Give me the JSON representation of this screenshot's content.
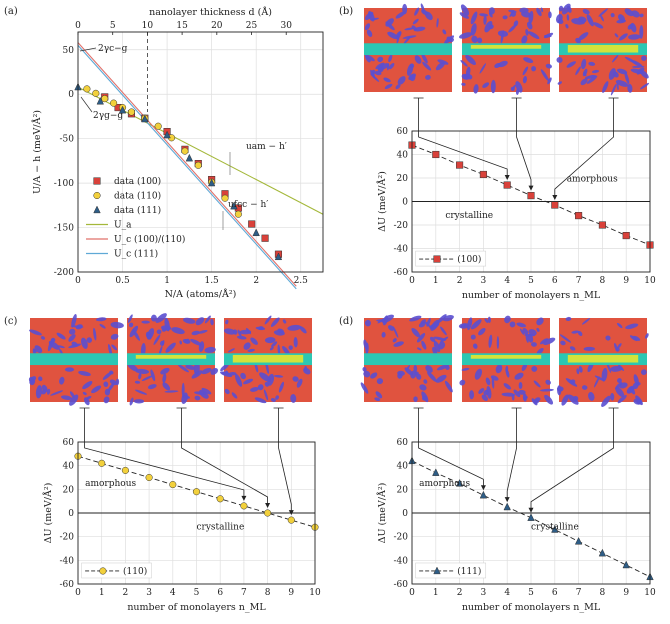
{
  "chart_data": [
    {
      "panel": "(a)",
      "type": "scatter",
      "title": "",
      "xlabel": "N/A  (atoms/Å²)",
      "ylabel": "U/A − h  (meV/Å²)",
      "top_xlabel": "nanolayer thickness d (Å)",
      "xlim": [
        0,
        2.75
      ],
      "ylim": [
        -200,
        70
      ],
      "x_ticks": [
        0,
        0.5,
        1,
        1.5,
        2,
        2.5
      ],
      "x_tick_labels": [
        "0",
        "0.5",
        "1",
        "1.5",
        "2",
        "2.5"
      ],
      "y_ticks": [
        50,
        0,
        -50,
        -100,
        -150,
        -200
      ],
      "top_ticks": [
        0,
        5,
        10,
        15,
        20,
        25,
        30
      ],
      "top_lim": [
        0,
        35.3
      ],
      "grid": true,
      "legend_position": "bottom-left",
      "dashed_vline_top": 10,
      "series": [
        {
          "name": "data (100)",
          "marker": "square",
          "color": "#d9413a",
          "x": [
            0.3,
            0.45,
            0.6,
            0.75,
            1.0,
            1.2,
            1.35,
            1.5,
            1.65,
            1.8,
            1.95,
            2.1,
            2.25
          ],
          "y": [
            -3,
            -15,
            -22,
            -27,
            -42,
            -62,
            -78,
            -96,
            -112,
            -128,
            -146,
            -162,
            -180
          ]
        },
        {
          "name": "data (110)",
          "marker": "circle",
          "color": "#f2d03c",
          "x": [
            0.1,
            0.2,
            0.3,
            0.4,
            0.5,
            0.6,
            0.75,
            0.9,
            1.05,
            1.2,
            1.35,
            1.5,
            1.65,
            1.8
          ],
          "y": [
            6,
            1,
            -5,
            -10,
            -15,
            -20,
            -27,
            -36,
            -49,
            -64,
            -80,
            -99,
            -117,
            -135
          ]
        },
        {
          "name": "data (111)",
          "marker": "triangle",
          "color": "#2e5d86",
          "x": [
            0.0,
            0.25,
            0.5,
            0.75,
            1.0,
            1.25,
            1.5,
            1.75,
            2.0,
            2.25
          ],
          "y": [
            8,
            -8,
            -18,
            -28,
            -46,
            -72,
            -100,
            -126,
            -156,
            -183
          ]
        }
      ],
      "lines": [
        {
          "name": "U_a",
          "color": "#a4b83a",
          "x": [
            0,
            2.75
          ],
          "y": [
            8,
            -135
          ]
        },
        {
          "name": "U_c (100)/(110)",
          "color": "#e0706a",
          "x": [
            0,
            2.45
          ],
          "y": [
            58,
            -216
          ]
        },
        {
          "name": "U_c (111)",
          "color": "#5fa9d6",
          "x": [
            0,
            2.45
          ],
          "y": [
            55,
            -219
          ]
        }
      ],
      "annotations": [
        "2γc−g",
        "2γg−g",
        "uam − h′",
        "ufcc − h′"
      ]
    },
    {
      "panel": "(b)",
      "type": "line",
      "xlabel": "number of monolayers n_ML",
      "ylabel": "ΔU  (meV/Å²)",
      "xlim": [
        0,
        10
      ],
      "ylim": [
        -60,
        60
      ],
      "x": [
        0,
        1,
        2,
        3,
        4,
        5,
        6,
        7,
        8,
        9,
        10
      ],
      "series": [
        {
          "name": "(100)",
          "marker": "square",
          "color": "#d9413a",
          "values": [
            48,
            40,
            31,
            23,
            14,
            5,
            -3,
            -12,
            -20,
            -29,
            -37
          ]
        }
      ],
      "region_labels": [
        "amorphous",
        "crystalline"
      ],
      "arrow_targets": [
        4,
        5,
        6
      ]
    },
    {
      "panel": "(c)",
      "type": "line",
      "xlabel": "number of monolayers n_ML",
      "ylabel": "ΔU  (meV/Å²)",
      "xlim": [
        0,
        10
      ],
      "ylim": [
        -60,
        60
      ],
      "x": [
        0,
        1,
        2,
        3,
        4,
        5,
        6,
        7,
        8,
        9,
        10
      ],
      "series": [
        {
          "name": "(110)",
          "marker": "circle",
          "color": "#f2d03c",
          "values": [
            48,
            42,
            36,
            30,
            24,
            18,
            12,
            6,
            0,
            -6,
            -12
          ]
        }
      ],
      "region_labels": [
        "amorphous",
        "crystalline"
      ],
      "arrow_targets": [
        7,
        8,
        9
      ]
    },
    {
      "panel": "(d)",
      "type": "line",
      "xlabel": "number of monolayers n_ML",
      "ylabel": "ΔU  (meV/Å²)",
      "xlim": [
        0,
        10
      ],
      "ylim": [
        -60,
        60
      ],
      "x": [
        0,
        1,
        2,
        3,
        4,
        5,
        6,
        7,
        8,
        9,
        10
      ],
      "series": [
        {
          "name": "(111)",
          "marker": "triangle",
          "color": "#2e5d86",
          "values": [
            44,
            34,
            25,
            15,
            5,
            -4,
            -14,
            -24,
            -34,
            -44,
            -54
          ]
        }
      ],
      "region_labels": [
        "amorphous",
        "crystalline"
      ],
      "arrow_targets": [
        3,
        4,
        5
      ]
    }
  ],
  "colors": {
    "grid": "#dedede",
    "frame": "#222222",
    "atom_red": "#e0533f",
    "atom_blue": "#5a4fd0",
    "layer_cyan": "#2cc7b3",
    "layer_yellow": "#e6e62e"
  }
}
